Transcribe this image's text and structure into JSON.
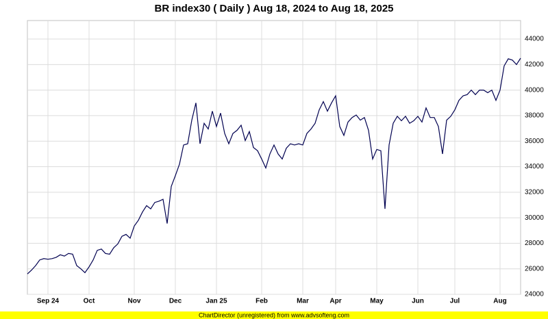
{
  "chart_data": {
    "type": "line",
    "title": "BR index30 ( Daily ) Aug 18, 2024 to Aug 18, 2025",
    "footer": "ChartDirector (unregistered) from www.advsofteng.com",
    "categories": [
      null,
      null,
      null,
      null,
      null,
      "Sep 24",
      null,
      null,
      null,
      null,
      null,
      null,
      null,
      null,
      null,
      "Oct",
      null,
      null,
      null,
      null,
      null,
      null,
      null,
      null,
      null,
      null,
      "Nov",
      null,
      null,
      null,
      null,
      null,
      null,
      null,
      null,
      null,
      "Dec",
      null,
      null,
      null,
      null,
      null,
      null,
      null,
      null,
      null,
      "Jan 25",
      null,
      null,
      null,
      null,
      null,
      null,
      null,
      null,
      null,
      null,
      "Feb",
      null,
      null,
      null,
      null,
      null,
      null,
      null,
      null,
      null,
      "Mar",
      null,
      null,
      null,
      null,
      null,
      null,
      null,
      "Apr",
      null,
      null,
      null,
      null,
      null,
      null,
      null,
      null,
      null,
      "May",
      null,
      null,
      null,
      null,
      null,
      null,
      null,
      null,
      null,
      "Jun",
      null,
      null,
      null,
      null,
      null,
      null,
      null,
      null,
      "Jul",
      null,
      null,
      null,
      null,
      null,
      null,
      null,
      null,
      null,
      null,
      "Aug",
      null,
      null,
      null,
      null,
      null
    ],
    "series": [
      {
        "name": "BR index30",
        "color": "#000050",
        "values": [
          25600,
          25900,
          26250,
          26700,
          26800,
          26750,
          26800,
          26900,
          27100,
          27000,
          27200,
          27150,
          26250,
          26000,
          25700,
          26150,
          26700,
          27450,
          27550,
          27200,
          27150,
          27650,
          27950,
          28550,
          28700,
          28400,
          29350,
          29800,
          30450,
          30950,
          30700,
          31200,
          31300,
          31450,
          29550,
          32450,
          33300,
          34200,
          35700,
          35800,
          37650,
          39000,
          35800,
          37400,
          36950,
          38350,
          37150,
          38200,
          36600,
          35800,
          36600,
          36850,
          37250,
          36050,
          36750,
          35500,
          35250,
          34600,
          33900,
          35000,
          35700,
          35000,
          34600,
          35450,
          35800,
          35700,
          35800,
          35700,
          36600,
          36950,
          37400,
          38450,
          39100,
          38350,
          39000,
          39550,
          37150,
          36450,
          37500,
          37850,
          38050,
          37650,
          37850,
          36850,
          34600,
          35350,
          35250,
          30700,
          35700,
          37400,
          37950,
          37600,
          37950,
          37400,
          37600,
          37950,
          37500,
          38600,
          37850,
          37850,
          37150,
          35000,
          37650,
          37950,
          38450,
          39200,
          39550,
          39650,
          40000,
          39650,
          40000,
          40000,
          39800,
          40000,
          39200,
          40000,
          41900,
          42450,
          42350,
          42000,
          42500
        ]
      }
    ],
    "ylim": [
      24000,
      45450
    ],
    "yticks": [
      24000,
      26000,
      28000,
      30000,
      32000,
      34000,
      36000,
      38000,
      40000,
      42000,
      44000
    ],
    "grid": true
  }
}
